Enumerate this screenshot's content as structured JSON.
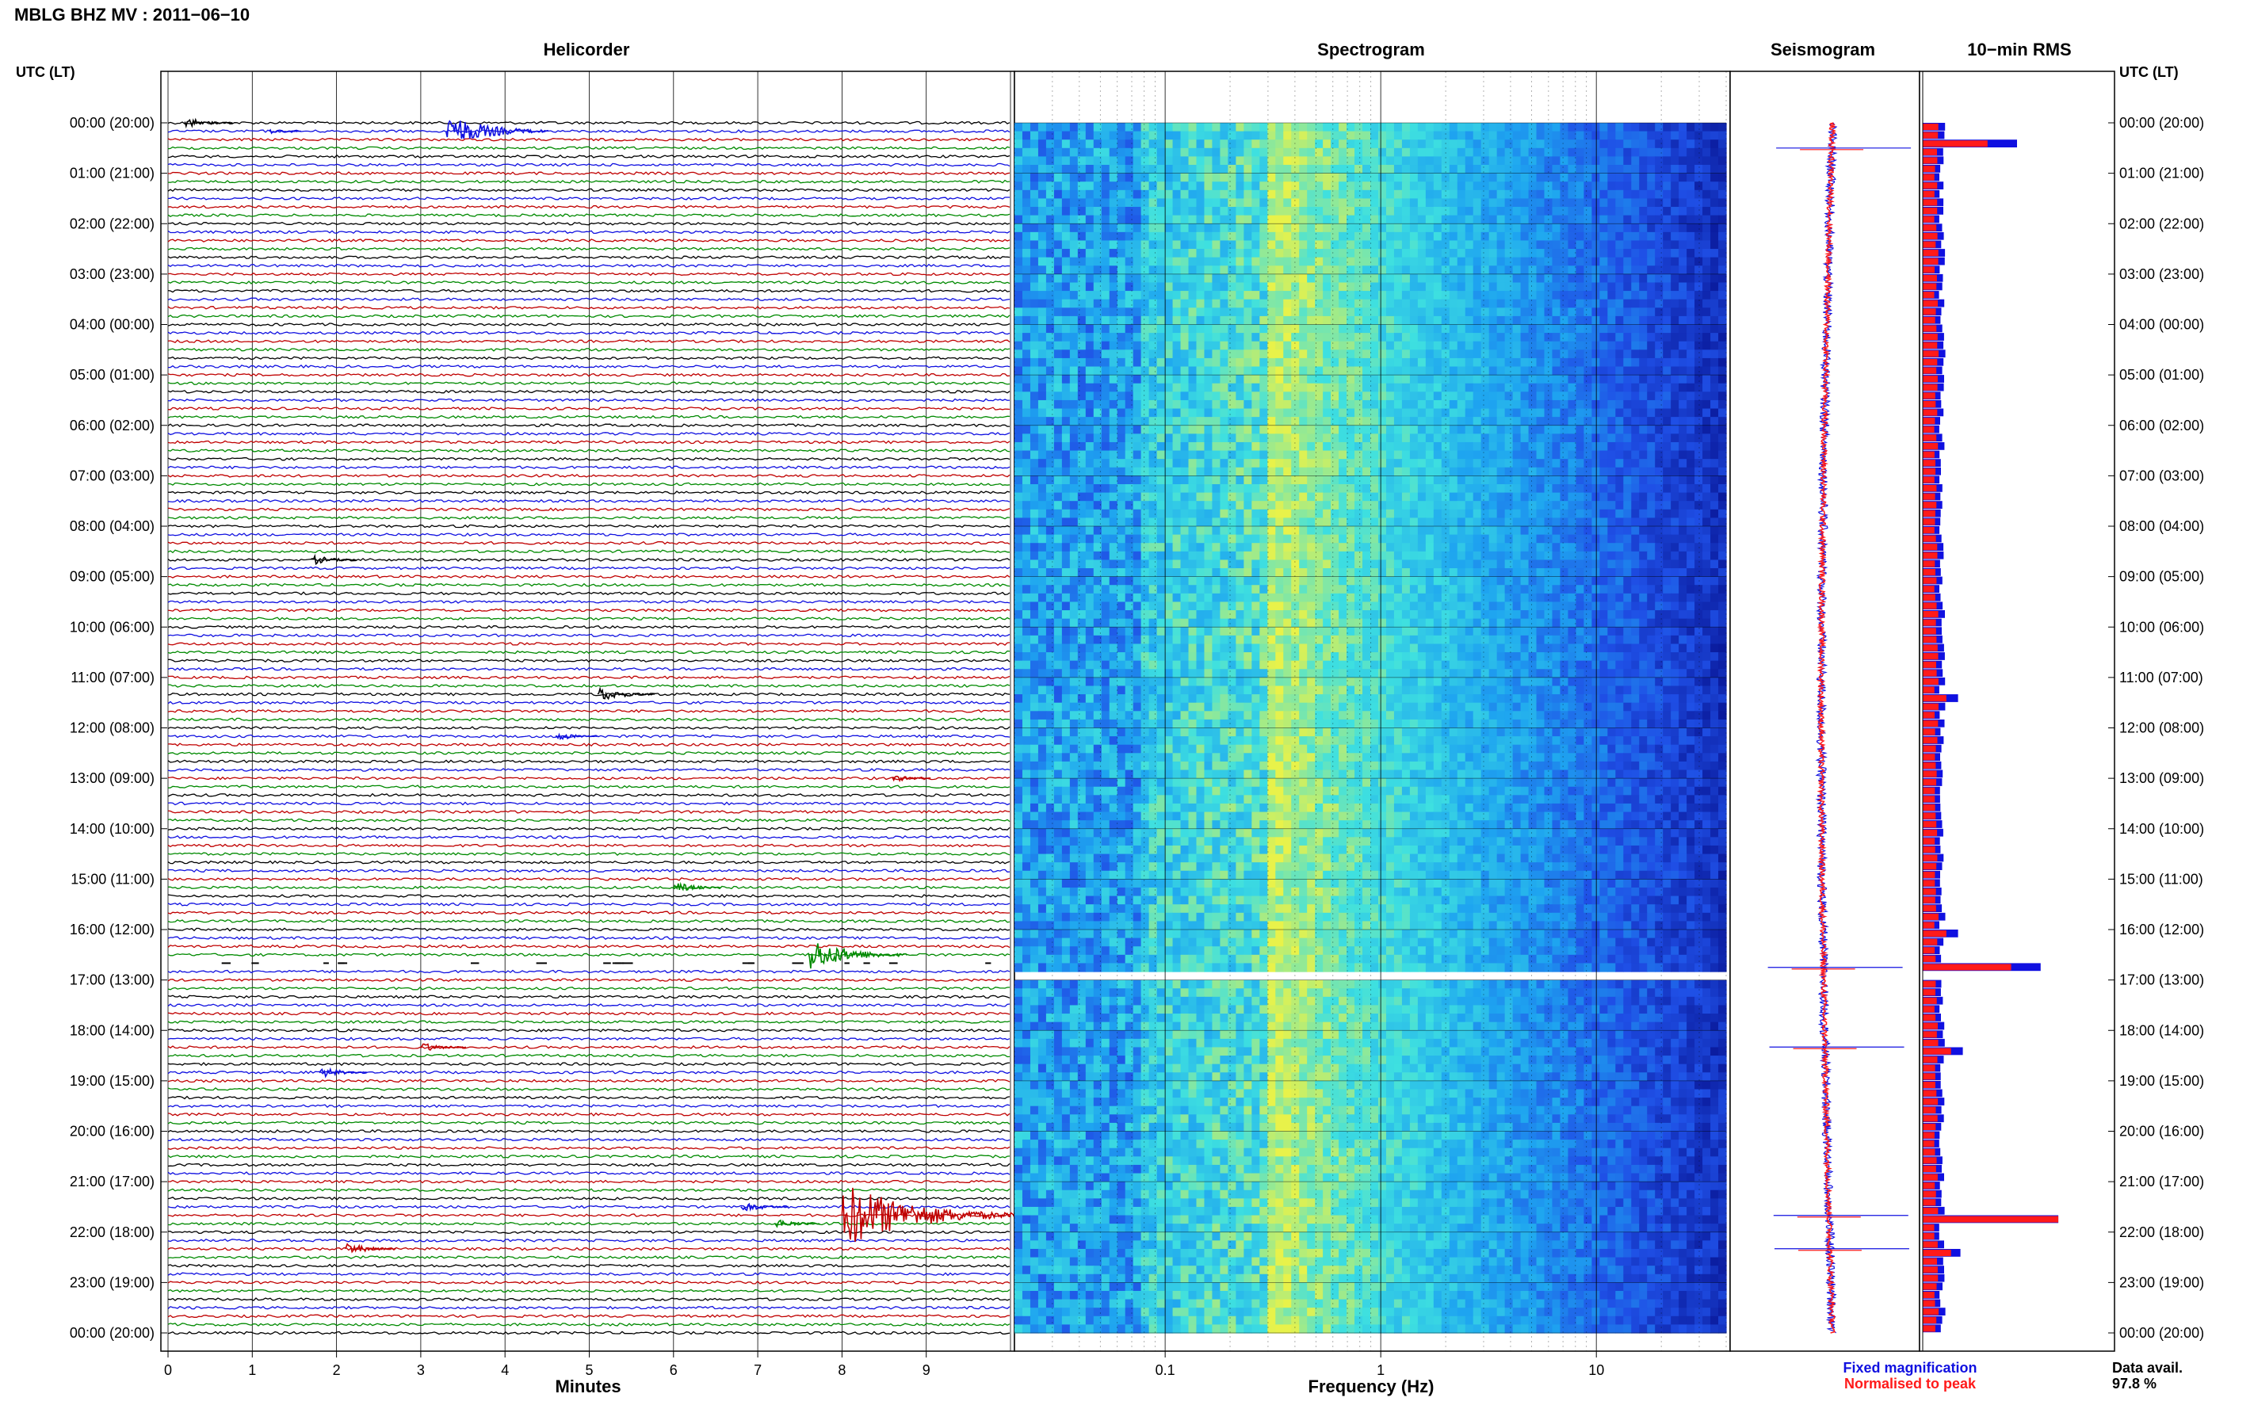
{
  "header": {
    "title": "MBLG BHZ MV : 2011−06−10"
  },
  "panels": {
    "helicorder": "Helicorder",
    "spectrogram": "Spectrogram",
    "seismogram": "Seismogram",
    "rms": "10−min RMS"
  },
  "axis_labels": {
    "utc_left": "UTC (LT)",
    "utc_right": "UTC (LT)",
    "minutes": "Minutes",
    "frequency": "Frequency (Hz)"
  },
  "legend": {
    "fixed": "Fixed magnification",
    "normalised": "Normalised to peak",
    "fixed_color": "#1010e0",
    "normalised_color": "#ff1a1a"
  },
  "data_avail": {
    "label": "Data avail.",
    "value": "97.8 %"
  },
  "time_ticks": [
    "00:00 (20:00)",
    "01:00 (21:00)",
    "02:00 (22:00)",
    "03:00 (23:00)",
    "04:00 (00:00)",
    "05:00 (01:00)",
    "06:00 (02:00)",
    "07:00 (03:00)",
    "08:00 (04:00)",
    "09:00 (05:00)",
    "10:00 (06:00)",
    "11:00 (07:00)",
    "12:00 (08:00)",
    "13:00 (09:00)",
    "14:00 (10:00)",
    "15:00 (11:00)",
    "16:00 (12:00)",
    "17:00 (13:00)",
    "18:00 (14:00)",
    "19:00 (15:00)",
    "20:00 (16:00)",
    "21:00 (17:00)",
    "22:00 (18:00)",
    "23:00 (19:00)",
    "00:00 (20:00)"
  ],
  "chart_data": [
    {
      "type": "line",
      "title": "Helicorder",
      "xlabel": "Minutes",
      "ylabel": "UTC (LT)",
      "xlim": [
        0,
        10
      ],
      "x_ticks": [
        "0",
        "1",
        "2",
        "3",
        "4",
        "5",
        "6",
        "7",
        "8",
        "9"
      ],
      "ylim": [
        0,
        24
      ],
      "trace_minutes": 10,
      "trace_colors": [
        "#000000",
        "#1010e0",
        "#c00000",
        "#008a00"
      ],
      "data_gap_hours": [
        16.6,
        16.75
      ],
      "events": [
        {
          "hour": 0.0,
          "minute": 0.2,
          "amp": 0.9
        },
        {
          "hour": 0.17,
          "minute": 1.2,
          "amp": 0.4
        },
        {
          "hour": 0.17,
          "minute": 3.3,
          "amp": 2.6
        },
        {
          "hour": 8.67,
          "minute": 1.7,
          "amp": 0.8
        },
        {
          "hour": 11.33,
          "minute": 5.1,
          "amp": 1.2
        },
        {
          "hour": 12.17,
          "minute": 4.6,
          "amp": 0.7
        },
        {
          "hour": 13.0,
          "minute": 8.6,
          "amp": 0.6
        },
        {
          "hour": 15.17,
          "minute": 6.0,
          "amp": 0.9
        },
        {
          "hour": 16.5,
          "minute": 7.6,
          "amp": 2.5
        },
        {
          "hour": 18.33,
          "minute": 3.0,
          "amp": 0.8
        },
        {
          "hour": 18.83,
          "minute": 1.8,
          "amp": 0.9
        },
        {
          "hour": 21.5,
          "minute": 6.8,
          "amp": 0.9
        },
        {
          "hour": 21.67,
          "minute": 8.0,
          "amp": 5.0
        },
        {
          "hour": 21.83,
          "minute": 7.2,
          "amp": 0.8
        },
        {
          "hour": 22.33,
          "minute": 2.1,
          "amp": 1.0
        }
      ]
    },
    {
      "type": "heatmap",
      "title": "Spectrogram",
      "xlabel": "Frequency (Hz)",
      "x_scale": "log",
      "xlim": [
        0.02,
        40
      ],
      "x_ticks": [
        "0.1",
        "1",
        "10"
      ],
      "ylim": [
        0,
        24
      ],
      "data_gap_hours": [
        16.67,
        17.0
      ],
      "colors": [
        "#0a1a9c",
        "#1f4fe6",
        "#1ea4f0",
        "#3ee0e0",
        "#e8f24a"
      ],
      "peak_band_hz": [
        0.2,
        0.4
      ]
    },
    {
      "type": "line",
      "title": "Seismogram",
      "ylim": [
        0,
        24
      ],
      "series": [
        {
          "name": "Fixed magnification",
          "color": "#1010e0"
        },
        {
          "name": "Normalised to peak",
          "color": "#ff1a1a"
        }
      ],
      "spikes_hours": [
        0.5,
        16.75,
        18.33,
        21.67,
        22.33
      ]
    },
    {
      "type": "bar",
      "title": "10−min RMS",
      "ylim": [
        0,
        24
      ],
      "interval_minutes": 10,
      "series": [
        {
          "name": "Fixed magnification",
          "color": "#1010e0"
        },
        {
          "name": "Normalised to peak",
          "color": "#ff1a1a"
        }
      ],
      "base_level": 0.28,
      "peaks": [
        {
          "hour": 0.33,
          "red": 0.55,
          "blue": 0.8
        },
        {
          "hour": 16.67,
          "red": 0.75,
          "blue": 1.0
        },
        {
          "hour": 21.67,
          "red": 1.15,
          "blue": 1.15
        },
        {
          "hour": 22.33,
          "red": 0.24,
          "blue": 0.32
        },
        {
          "hour": 18.33,
          "red": 0.24,
          "blue": 0.34
        },
        {
          "hour": 11.33,
          "red": 0.2,
          "blue": 0.3
        },
        {
          "hour": 16.0,
          "red": 0.2,
          "blue": 0.3
        }
      ]
    }
  ],
  "annotations": {
    "x_axis_ticks_note": ""
  }
}
